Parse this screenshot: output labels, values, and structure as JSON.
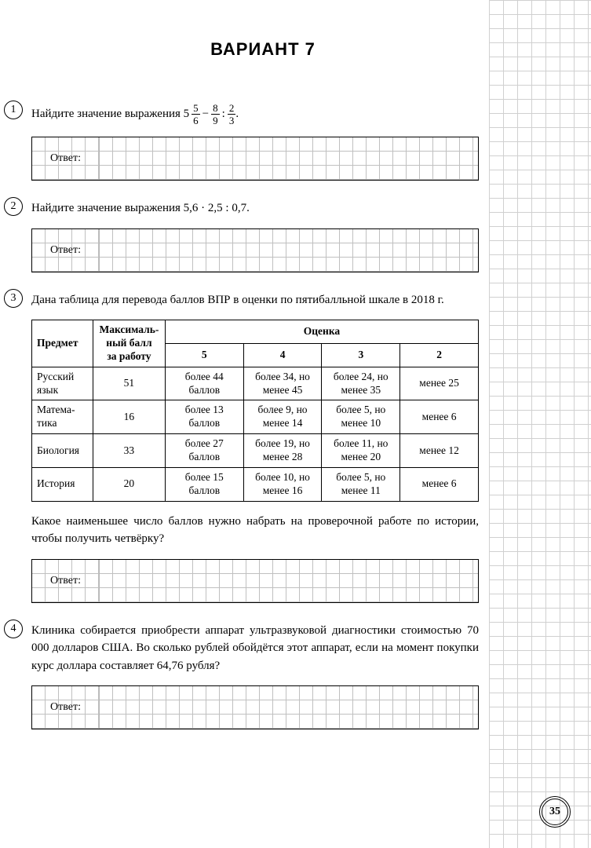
{
  "title": "ВАРИАНТ 7",
  "answer_label": "Ответ:",
  "page_number": "35",
  "p1": {
    "num": "1",
    "text_pre": "Найдите значение выражения ",
    "whole": "5",
    "f1n": "5",
    "f1d": "6",
    "op1": "−",
    "f2n": "8",
    "f2d": "9",
    "op2": ":",
    "f3n": "2",
    "f3d": "3",
    "period": "."
  },
  "p2": {
    "num": "2",
    "text": "Найдите значение выражения 5,6 · 2,5 : 0,7."
  },
  "p3": {
    "num": "3",
    "intro": "Дана таблица для перевода баллов ВПР в оценки по пятибалльной шкале в 2018 г.",
    "headers": {
      "subject": "Предмет",
      "max": "Максималь-\nный балл\nза работу",
      "grade": "Оценка",
      "g5": "5",
      "g4": "4",
      "g3": "3",
      "g2": "2"
    },
    "rows": [
      {
        "subj": "Русский язык",
        "max": "51",
        "c5": "более 44 баллов",
        "c4": "более 34, но менее 45",
        "c3": "более 24, но менее 35",
        "c2": "менее 25"
      },
      {
        "subj": "Матема-тика",
        "max": "16",
        "c5": "более 13 баллов",
        "c4": "более 9, но менее 14",
        "c3": "более 5, но менее 10",
        "c2": "менее 6"
      },
      {
        "subj": "Биология",
        "max": "33",
        "c5": "более 27 баллов",
        "c4": "более 19, но менее 28",
        "c3": "более 11, но менее 20",
        "c2": "менее 12"
      },
      {
        "subj": "История",
        "max": "20",
        "c5": "более 15 баллов",
        "c4": "более 10, но менее 16",
        "c3": "более 5, но менее 11",
        "c2": "менее 6"
      }
    ],
    "question": "Какое наименьшее число баллов нужно набрать на проверочной работе по истории, чтобы получить четвёрку?"
  },
  "p4": {
    "num": "4",
    "text": "Клиника собирается приобрести аппарат ультразвуковой диагностики стоимостью 70 000 долларов США. Во сколько рублей обойдётся этот аппарат, если на момент покупки курс доллара составляет 64,76 рубля?"
  }
}
